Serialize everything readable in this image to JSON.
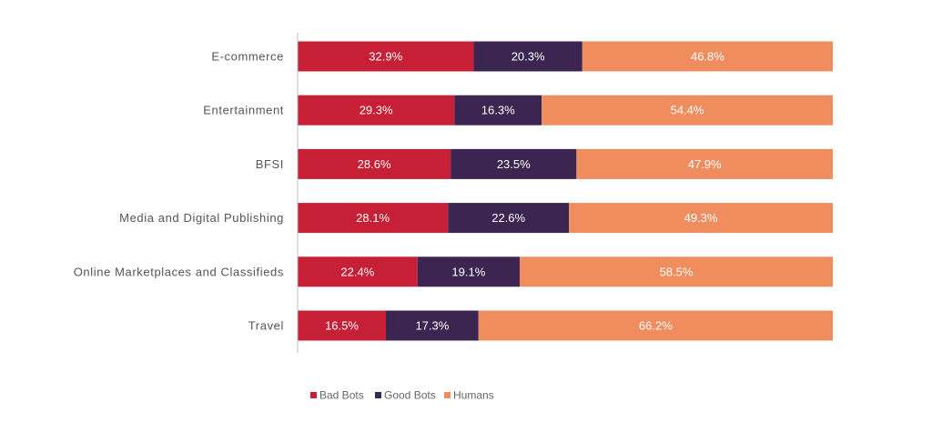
{
  "chart_data": {
    "type": "bar",
    "orientation": "horizontal",
    "stacked": true,
    "title": "",
    "xlabel": "",
    "ylabel": "",
    "xlim": [
      0,
      100
    ],
    "categories": [
      "E-commerce",
      "Entertainment",
      "BFSI",
      "Media and Digital Publishing",
      "Online Marketplaces and Classifieds",
      "Travel"
    ],
    "series": [
      {
        "name": "Bad Bots",
        "color": "#c71f35",
        "values": [
          32.9,
          29.3,
          28.6,
          28.1,
          22.4,
          16.5
        ],
        "labels": [
          "32.9%",
          "29.3%",
          "28.6%",
          "28.1%",
          "22.4%",
          "16.5%"
        ]
      },
      {
        "name": "Good Bots",
        "color": "#3c2550",
        "values": [
          20.3,
          16.3,
          23.5,
          22.6,
          19.1,
          17.3
        ],
        "labels": [
          "20.3%",
          "16.3%",
          "23.5%",
          "22.6%",
          "19.1%",
          "17.3%"
        ]
      },
      {
        "name": "Humans",
        "color": "#ef8d5f",
        "values": [
          46.8,
          54.4,
          47.9,
          49.3,
          58.5,
          66.2
        ],
        "labels": [
          "46.8%",
          "54.4%",
          "47.9%",
          "49.3%",
          "58.5%",
          "66.2%"
        ]
      }
    ],
    "legend_position": "bottom-center",
    "grid": false
  }
}
